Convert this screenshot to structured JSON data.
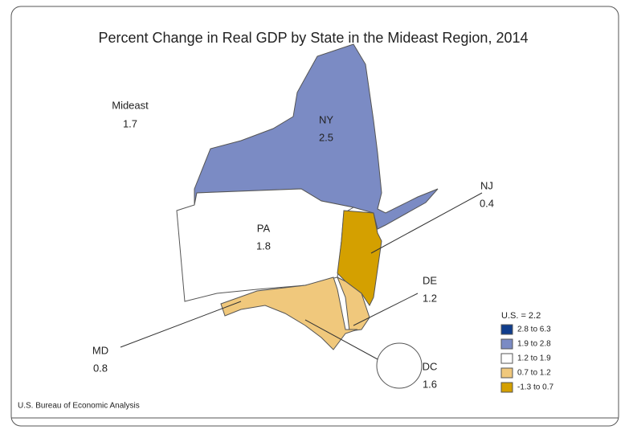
{
  "title": "Percent Change in Real GDP by State in the Mideast Region, 2014",
  "region": {
    "label": "Mideast",
    "value": 1.7
  },
  "states": [
    {
      "label": "NY",
      "value": 2.5,
      "color": "#7b8bc4"
    },
    {
      "label": "PA",
      "value": 1.8,
      "color": "#ffffff"
    },
    {
      "label": "NJ",
      "value": 0.4,
      "color": "#d4a000"
    },
    {
      "label": "DE",
      "value": 1.2,
      "color": "#f0c87c"
    },
    {
      "label": "MD",
      "value": 0.8,
      "color": "#f0c87c"
    },
    {
      "label": "DC",
      "value": 1.6,
      "color": "#ffffff"
    }
  ],
  "legend": {
    "title": "U.S. = 2.2",
    "entries": [
      {
        "label": "2.8 to 6.3",
        "color": "#103d8c"
      },
      {
        "label": "1.9 to 2.8",
        "color": "#7b8bc4"
      },
      {
        "label": "1.2 to 1.9",
        "color": "#ffffff"
      },
      {
        "label": "0.7 to 1.2",
        "color": "#f0c87c"
      },
      {
        "label": "-1.3 to 0.7",
        "color": "#d4a000"
      }
    ]
  },
  "source": "U.S. Bureau of Economic Analysis"
}
